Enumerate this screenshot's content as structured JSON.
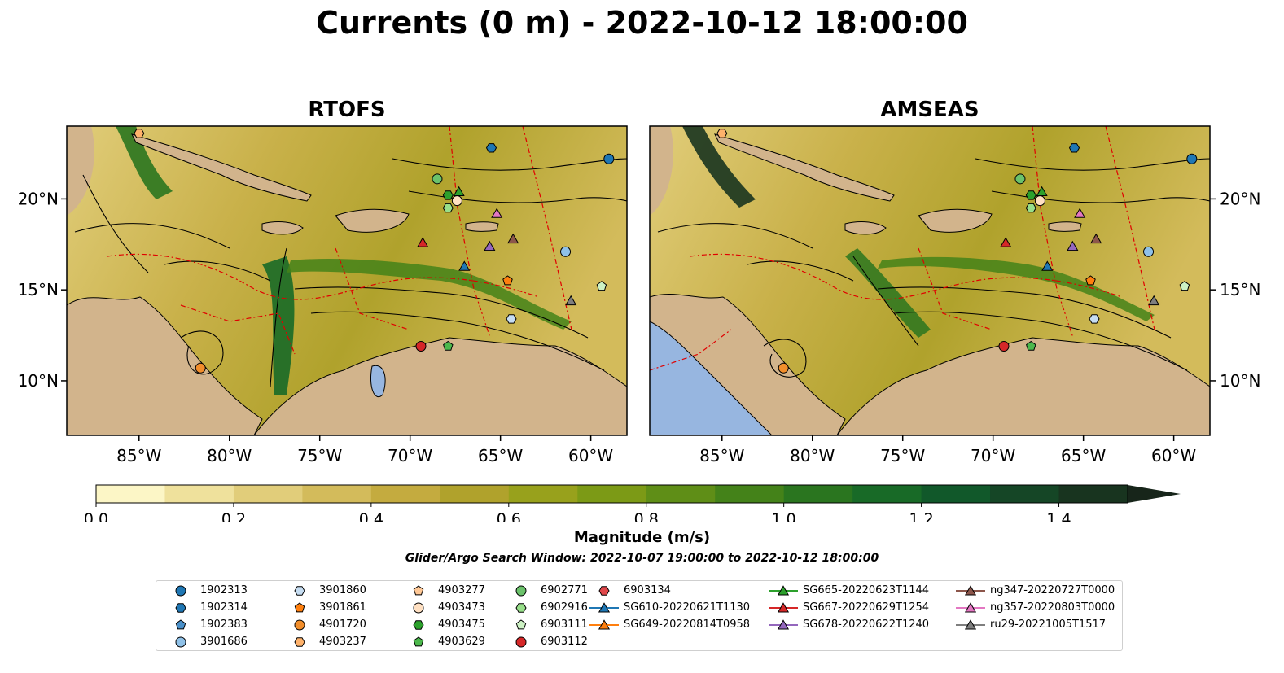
{
  "title": "Currents (0 m) - 2022-10-12 18:00:00",
  "panels": [
    {
      "title": "RTOFS"
    },
    {
      "title": "AMSEAS"
    }
  ],
  "map": {
    "lon_range": [
      -89,
      -58
    ],
    "lat_range": [
      7,
      24
    ],
    "lon_ticks": [
      "85°W",
      "80°W",
      "75°W",
      "70°W",
      "65°W",
      "60°W"
    ],
    "lat_ticks": [
      "20°N",
      "15°N",
      "10°N"
    ],
    "colors": {
      "land": "#d2b48c",
      "ocean_masked": "#97b6e0",
      "eez": "#e00000",
      "border": "#000000",
      "river": "#9aa8c6"
    }
  },
  "colorbar": {
    "label": "Magnitude (m/s)",
    "ticks": [
      "0.0",
      "0.2",
      "0.4",
      "0.6",
      "0.8",
      "1.0",
      "1.2",
      "1.4"
    ],
    "range": [
      0,
      1.5
    ],
    "extend": "max",
    "colors": [
      "#fcf6c6",
      "#efe19c",
      "#e1cd7a",
      "#d3bb5b",
      "#c4ab3f",
      "#b0a22c",
      "#98a11c",
      "#7c9a16",
      "#5f8e17",
      "#448219",
      "#2a751f",
      "#186a27",
      "#11582a",
      "#154626",
      "#18341f",
      "#17251a"
    ]
  },
  "search_window": "Glider/Argo Search Window: 2022-10-07 19:00:00 to 2022-10-12 18:00:00",
  "legend": {
    "items": [
      {
        "label": "1902313",
        "marker": "circle",
        "color": "#1f77b4"
      },
      {
        "label": "1902314",
        "marker": "hexagon",
        "color": "#1f77b4"
      },
      {
        "label": "1902383",
        "marker": "pentagon",
        "color": "#4a90c9"
      },
      {
        "label": "3901686",
        "marker": "circle",
        "color": "#8fc1e8"
      },
      {
        "label": "3901860",
        "marker": "hexagon",
        "color": "#c6ddf2"
      },
      {
        "label": "3901861",
        "marker": "pentagon",
        "color": "#ff7f0e"
      },
      {
        "label": "4901720",
        "marker": "circle",
        "color": "#f28e2b"
      },
      {
        "label": "4903237",
        "marker": "hexagon",
        "color": "#ffb26b"
      },
      {
        "label": "4903277",
        "marker": "pentagon",
        "color": "#ffc896"
      },
      {
        "label": "4903473",
        "marker": "circle",
        "color": "#ffe0c2"
      },
      {
        "label": "4903475",
        "marker": "hexagon",
        "color": "#2ca02c"
      },
      {
        "label": "4903629",
        "marker": "pentagon",
        "color": "#4cb84c"
      },
      {
        "label": "6902771",
        "marker": "circle",
        "color": "#6bc26b"
      },
      {
        "label": "6902916",
        "marker": "hexagon",
        "color": "#98df8a"
      },
      {
        "label": "6903111",
        "marker": "pentagon",
        "color": "#cdf2c4"
      },
      {
        "label": "6903112",
        "marker": "circle",
        "color": "#d62728"
      },
      {
        "label": "6903134",
        "marker": "hexagon",
        "color": "#e0474a"
      },
      {
        "label": "SG610-20220621T1130",
        "marker": "triangle",
        "color": "#1f77b4"
      },
      {
        "label": "SG649-20220814T0958",
        "marker": "triangle",
        "color": "#ff7f0e"
      },
      {
        "label": "SG665-20220623T1144",
        "marker": "triangle",
        "color": "#2ca02c"
      },
      {
        "label": "SG667-20220629T1254",
        "marker": "triangle",
        "color": "#d62728"
      },
      {
        "label": "SG678-20220622T1240",
        "marker": "triangle",
        "color": "#9467bd"
      },
      {
        "label": "ng347-20220727T0000",
        "marker": "triangle",
        "color": "#8c564b"
      },
      {
        "label": "ng357-20220803T0000",
        "marker": "triangle",
        "color": "#e377c2"
      },
      {
        "label": "ru29-20221005T1517",
        "marker": "triangle",
        "color": "#7f7f7f"
      }
    ]
  },
  "markers": [
    {
      "label": "1902313",
      "lon": -59.0,
      "lat": 22.2
    },
    {
      "label": "1902314",
      "lon": -65.5,
      "lat": 22.8
    },
    {
      "label": "3901686",
      "lon": -61.4,
      "lat": 17.1
    },
    {
      "label": "3901860",
      "lon": -64.4,
      "lat": 13.4
    },
    {
      "label": "3901861",
      "lon": -64.6,
      "lat": 15.5
    },
    {
      "label": "4901720",
      "lon": -81.6,
      "lat": 10.7
    },
    {
      "label": "4903237",
      "lon": -85.0,
      "lat": 23.6
    },
    {
      "label": "4903473",
      "lon": -67.4,
      "lat": 19.9
    },
    {
      "label": "6902771",
      "lon": -68.5,
      "lat": 21.1
    },
    {
      "label": "6902916",
      "lon": -67.9,
      "lat": 19.5
    },
    {
      "label": "6903111",
      "lon": -59.4,
      "lat": 15.2
    },
    {
      "label": "6903112",
      "lon": -69.4,
      "lat": 11.9
    },
    {
      "label": "4903629",
      "lon": -67.9,
      "lat": 11.9
    },
    {
      "label": "4903475",
      "lon": -67.9,
      "lat": 20.2
    },
    {
      "label": "SG665-20220623T1144",
      "lon": -67.3,
      "lat": 20.4
    },
    {
      "label": "SG667-20220629T1254",
      "lon": -69.3,
      "lat": 17.6
    },
    {
      "label": "SG610-20220621T1130",
      "lon": -67.0,
      "lat": 16.3
    },
    {
      "label": "SG678-20220622T1240",
      "lon": -65.6,
      "lat": 17.4
    },
    {
      "label": "ng357-20220803T0000",
      "lon": -65.2,
      "lat": 19.2
    },
    {
      "label": "ng347-20220727T0000",
      "lon": -64.3,
      "lat": 17.8
    },
    {
      "label": "ru29-20221005T1517",
      "lon": -61.1,
      "lat": 14.4
    }
  ]
}
